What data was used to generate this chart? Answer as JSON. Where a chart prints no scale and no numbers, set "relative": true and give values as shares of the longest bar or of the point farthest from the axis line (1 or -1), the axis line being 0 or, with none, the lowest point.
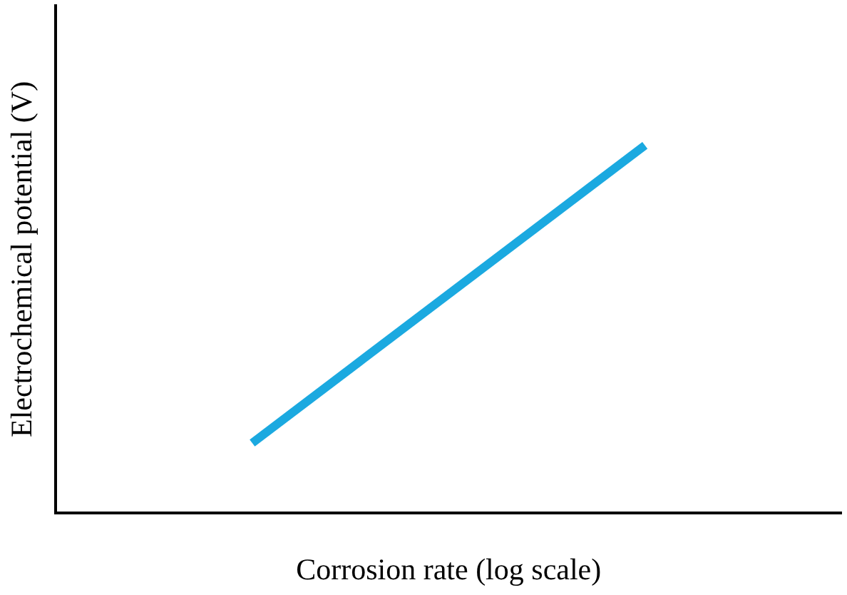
{
  "chart_data": {
    "type": "line",
    "relative": true,
    "xlabel": "Corrosion rate (log scale)",
    "ylabel": "Electrochemical potential (V)",
    "categories": [
      null,
      null
    ],
    "series": [
      {
        "color": "#1ba9e0",
        "values": [
          0.19,
          1
        ]
      }
    ],
    "grid": false,
    "legend": false,
    "marker": "none",
    "line_style": "solid"
  }
}
